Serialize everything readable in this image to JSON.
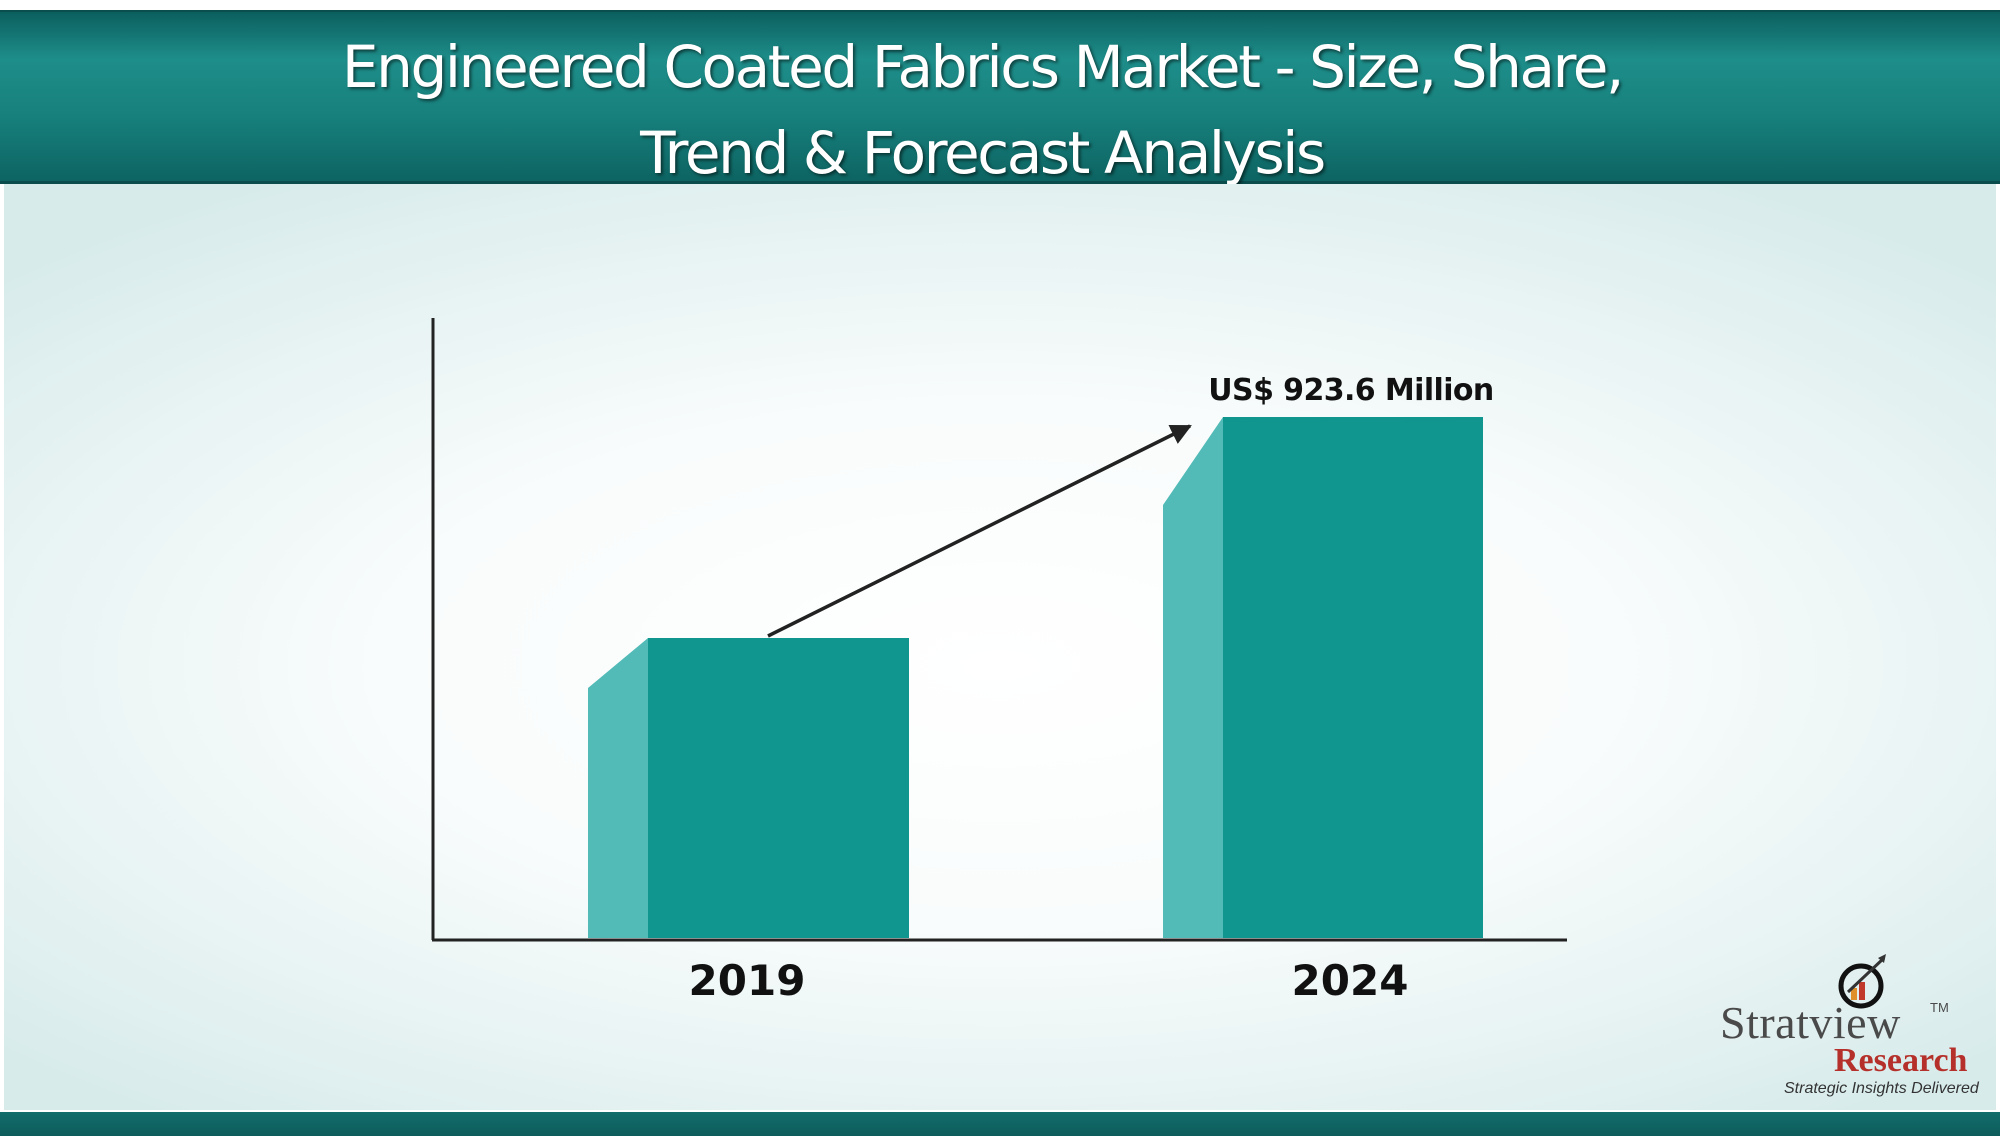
{
  "header": {
    "title_line1": "Engineered Coated Fabrics Market - Size, Share,",
    "title_line2": "Trend & Forecast Analysis"
  },
  "colors": {
    "header": "#17807c",
    "bar_front": "#11968f",
    "bar_side": "#52bbb7",
    "axis": "#222222",
    "logo_red": "#b5302a"
  },
  "chart_data": {
    "type": "bar",
    "categories": [
      "2019",
      "2024"
    ],
    "series": [
      {
        "values": [
          null,
          923.6
        ],
        "data_labels": [
          "",
          "US$ 923.6 Million"
        ]
      }
    ],
    "unit": "US$ Million",
    "annotations": [
      "growth arrow from 2019 bar to 2024 bar"
    ],
    "xlabel": "",
    "ylabel": "",
    "grid": false,
    "legend": "none"
  },
  "logo": {
    "name_part": "Stratview",
    "tm": "TM",
    "research": "Research",
    "tagline": "Strategic Insights Delivered",
    "icon": "magnifier-growth-chart-icon"
  }
}
